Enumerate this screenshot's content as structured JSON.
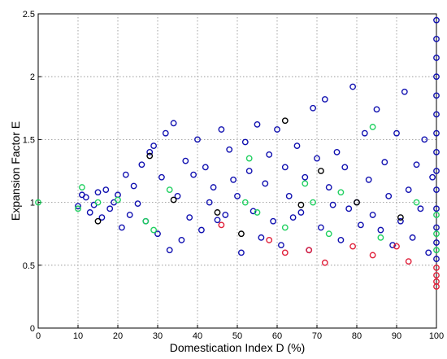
{
  "chart_data": {
    "type": "scatter",
    "title": "",
    "xlabel": "Domestication Index D (%)",
    "ylabel": "Expansion Factor E",
    "xlim": [
      0,
      100
    ],
    "ylim": [
      0,
      2.5
    ],
    "xticks": [
      0,
      10,
      20,
      30,
      40,
      50,
      60,
      70,
      80,
      90,
      100
    ],
    "yticks": [
      0,
      0.5,
      1,
      1.5,
      2,
      2.5
    ],
    "grid": true,
    "marker": "open-circle",
    "series": [
      {
        "color": "#1010b0",
        "points": [
          [
            10,
            0.97
          ],
          [
            11,
            1.06
          ],
          [
            12,
            1.04
          ],
          [
            13,
            0.92
          ],
          [
            14,
            0.98
          ],
          [
            15,
            1.08
          ],
          [
            16,
            0.88
          ],
          [
            17,
            1.1
          ],
          [
            18,
            0.95
          ],
          [
            19,
            1.0
          ],
          [
            20,
            1.06
          ],
          [
            21,
            0.8
          ],
          [
            22,
            1.22
          ],
          [
            23,
            0.9
          ],
          [
            24,
            1.13
          ],
          [
            25,
            0.99
          ],
          [
            26,
            1.3
          ],
          [
            27,
            0.85
          ],
          [
            28,
            1.4
          ],
          [
            29,
            1.45
          ],
          [
            30,
            0.75
          ],
          [
            31,
            1.2
          ],
          [
            32,
            1.55
          ],
          [
            33,
            0.62
          ],
          [
            34,
            1.63
          ],
          [
            35,
            1.05
          ],
          [
            36,
            0.7
          ],
          [
            37,
            1.33
          ],
          [
            38,
            0.88
          ],
          [
            39,
            1.22
          ],
          [
            40,
            1.5
          ],
          [
            41,
            0.78
          ],
          [
            42,
            1.28
          ],
          [
            43,
            1.0
          ],
          [
            44,
            1.12
          ],
          [
            45,
            0.86
          ],
          [
            46,
            1.58
          ],
          [
            47,
            0.9
          ],
          [
            48,
            1.42
          ],
          [
            49,
            1.18
          ],
          [
            50,
            1.05
          ],
          [
            51,
            0.6
          ],
          [
            52,
            1.48
          ],
          [
            53,
            1.25
          ],
          [
            54,
            0.93
          ],
          [
            55,
            1.62
          ],
          [
            56,
            0.72
          ],
          [
            57,
            1.15
          ],
          [
            58,
            1.38
          ],
          [
            59,
            0.85
          ],
          [
            60,
            1.58
          ],
          [
            61,
            0.66
          ],
          [
            62,
            1.28
          ],
          [
            63,
            1.05
          ],
          [
            64,
            0.88
          ],
          [
            65,
            1.45
          ],
          [
            66,
            0.92
          ],
          [
            67,
            1.2
          ],
          [
            68,
            0.62
          ],
          [
            69,
            1.75
          ],
          [
            70,
            1.35
          ],
          [
            71,
            0.8
          ],
          [
            72,
            1.82
          ],
          [
            73,
            1.12
          ],
          [
            74,
            0.98
          ],
          [
            75,
            1.4
          ],
          [
            76,
            0.7
          ],
          [
            77,
            1.28
          ],
          [
            78,
            0.95
          ],
          [
            79,
            1.92
          ],
          [
            80,
            1.0
          ],
          [
            81,
            0.82
          ],
          [
            82,
            1.55
          ],
          [
            83,
            1.18
          ],
          [
            84,
            0.9
          ],
          [
            85,
            1.74
          ],
          [
            86,
            0.78
          ],
          [
            87,
            1.32
          ],
          [
            88,
            1.05
          ],
          [
            89,
            0.66
          ],
          [
            90,
            1.55
          ],
          [
            91,
            0.85
          ],
          [
            92,
            1.88
          ],
          [
            93,
            1.1
          ],
          [
            94,
            0.72
          ],
          [
            95,
            1.3
          ],
          [
            96,
            0.95
          ],
          [
            97,
            1.5
          ],
          [
            98,
            0.6
          ],
          [
            99,
            1.2
          ],
          [
            100,
            2.45
          ],
          [
            100,
            2.3
          ],
          [
            100,
            2.15
          ],
          [
            100,
            2.0
          ],
          [
            100,
            1.85
          ],
          [
            100,
            1.7
          ],
          [
            100,
            1.55
          ],
          [
            100,
            1.4
          ],
          [
            100,
            1.25
          ],
          [
            100,
            1.1
          ],
          [
            100,
            0.95
          ],
          [
            100,
            0.8
          ],
          [
            100,
            0.68
          ],
          [
            100,
            0.55
          ]
        ]
      },
      {
        "color": "#20d060",
        "points": [
          [
            0,
            1.0
          ],
          [
            10,
            0.95
          ],
          [
            11,
            1.12
          ],
          [
            15,
            1.0
          ],
          [
            20,
            1.02
          ],
          [
            27,
            0.85
          ],
          [
            29,
            0.78
          ],
          [
            33,
            1.1
          ],
          [
            52,
            1.0
          ],
          [
            53,
            1.35
          ],
          [
            55,
            0.92
          ],
          [
            62,
            0.8
          ],
          [
            67,
            1.15
          ],
          [
            69,
            1.0
          ],
          [
            73,
            0.75
          ],
          [
            76,
            1.08
          ],
          [
            84,
            1.6
          ],
          [
            86,
            0.72
          ],
          [
            95,
            1.0
          ],
          [
            100,
            0.9
          ],
          [
            100,
            0.75
          ],
          [
            100,
            0.62
          ]
        ]
      },
      {
        "color": "#000000",
        "points": [
          [
            15,
            0.85
          ],
          [
            28,
            1.37
          ],
          [
            34,
            1.02
          ],
          [
            45,
            0.92
          ],
          [
            51,
            0.75
          ],
          [
            62,
            1.65
          ],
          [
            66,
            0.98
          ],
          [
            71,
            1.25
          ],
          [
            80,
            1.0
          ],
          [
            91,
            0.88
          ]
        ]
      },
      {
        "color": "#e0203a",
        "points": [
          [
            46,
            0.82
          ],
          [
            58,
            0.7
          ],
          [
            62,
            0.6
          ],
          [
            68,
            0.62
          ],
          [
            72,
            0.52
          ],
          [
            79,
            0.65
          ],
          [
            84,
            0.58
          ],
          [
            90,
            0.65
          ],
          [
            93,
            0.53
          ],
          [
            100,
            0.48
          ],
          [
            100,
            0.42
          ],
          [
            100,
            0.37
          ],
          [
            100,
            0.33
          ]
        ]
      }
    ]
  }
}
